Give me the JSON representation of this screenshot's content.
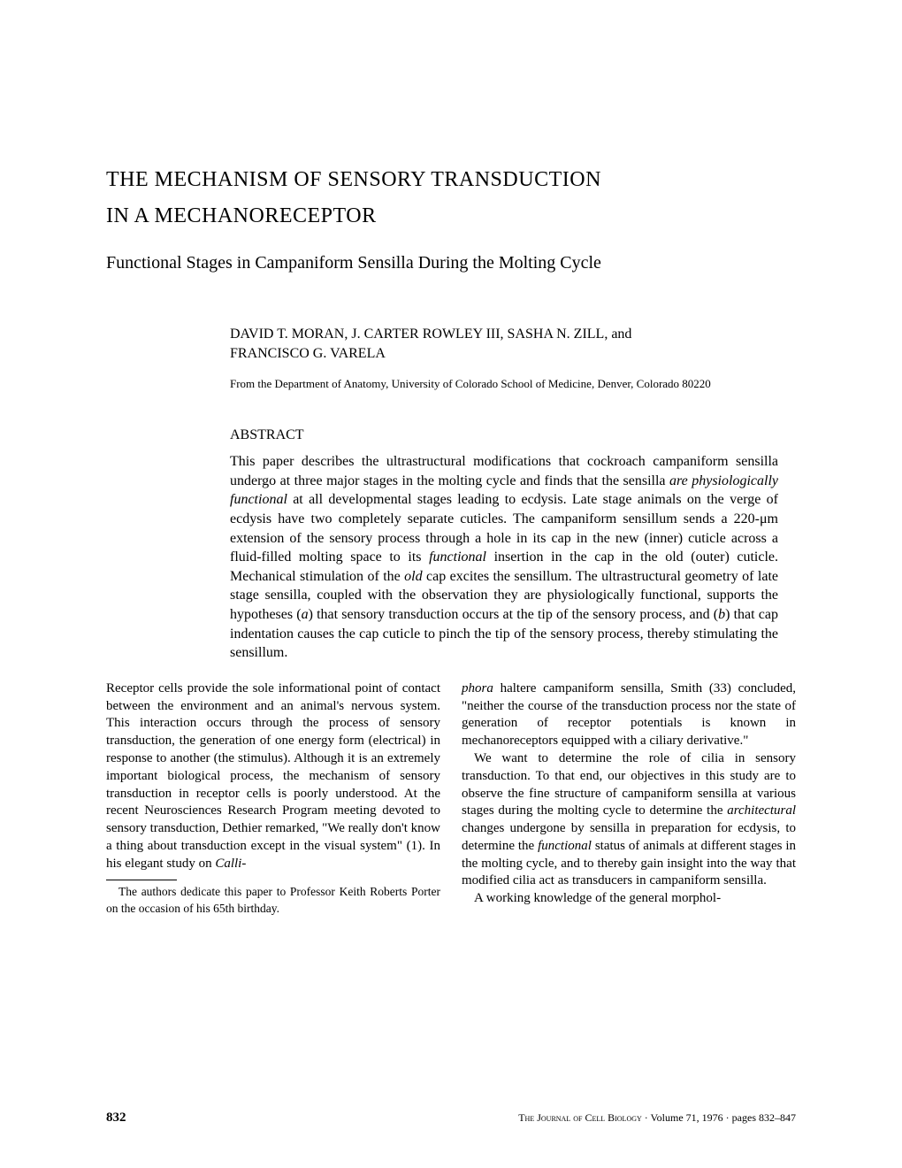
{
  "title": {
    "line1": "THE MECHANISM OF SENSORY TRANSDUCTION",
    "line2": "IN A MECHANORECEPTOR"
  },
  "subtitle": "Functional Stages in Campaniform Sensilla During the Molting Cycle",
  "authors": {
    "line1": "DAVID T. MORAN, J. CARTER ROWLEY III, SASHA N. ZILL, and",
    "line2": "FRANCISCO G. VARELA"
  },
  "affiliation": "From the Department of Anatomy, University of Colorado School of Medicine, Denver, Colorado 80220",
  "abstract_heading": "ABSTRACT",
  "abstract_p1_a": "This paper describes the ultrastructural modifications that cockroach campaniform sensilla undergo at three major stages in the molting cycle and finds that the sensilla ",
  "abstract_p1_b": "are physiologically functional",
  "abstract_p1_c": " at all developmental stages leading to ecdysis. Late stage animals on the verge of ecdysis have two completely separate cuticles. The campaniform sensillum sends a 220-μm extension of the sensory process through a hole in its cap in the new (inner) cuticle across a fluid-filled molting space to its ",
  "abstract_p1_d": "functional",
  "abstract_p1_e": " insertion in the cap in the old (outer) cuticle. Mechanical stimulation of the ",
  "abstract_p1_f": "old",
  "abstract_p1_g": " cap excites the sensillum. The ultrastructural geometry of late stage sensilla, coupled with the observation they are physiologically functional, supports the hypotheses (",
  "abstract_p1_h": "a",
  "abstract_p1_i": ") that sensory transduction occurs at the tip of the sensory process, and (",
  "abstract_p1_j": "b",
  "abstract_p1_k": ") that cap indentation causes the cap cuticle to pinch the tip of the sensory process, thereby stimulating the sensillum.",
  "col1_p1_a": "Receptor cells provide the sole informational point of contact between the environment and an animal's nervous system. This interaction occurs through the process of sensory transduction, the generation of one energy form (electrical) in response to another (the stimulus). Although it is an extremely important biological process, the mechanism of sensory transduction in receptor cells is poorly understood. At the recent Neurosciences Research Program meeting devoted to sensory transduction, Dethier remarked, \"We really don't know a thing about transduction except in the visual system\" (1). In his elegant study on ",
  "col1_p1_b": "Calli-",
  "footnote": "The authors dedicate this paper to Professor Keith Roberts Porter on the occasion of his 65th birthday.",
  "col2_p1_a": "phora",
  "col2_p1_b": " haltere campaniform sensilla, Smith (33) concluded, \"neither the course of the transduction process nor the state of generation of receptor potentials is known in mechanoreceptors equipped with a ciliary derivative.\"",
  "col2_p2_a": "We want to determine the role of cilia in sensory transduction. To that end, our objectives in this study are to observe the fine structure of campaniform sensilla at various stages during the molting cycle to determine the ",
  "col2_p2_b": "architectural",
  "col2_p2_c": " changes undergone by sensilla in preparation for ecdysis, to determine the ",
  "col2_p2_d": "functional",
  "col2_p2_e": " status of animals at different stages in the molting cycle, and to thereby gain insight into the way that modified cilia act as transducers in campaniform sensilla.",
  "col2_p3": "A working knowledge of the general morphol-",
  "footer": {
    "page": "832",
    "journal_a": "The Journal of Cell Biology",
    "journal_b": " · Volume 71, 1976 · pages 832–847"
  }
}
